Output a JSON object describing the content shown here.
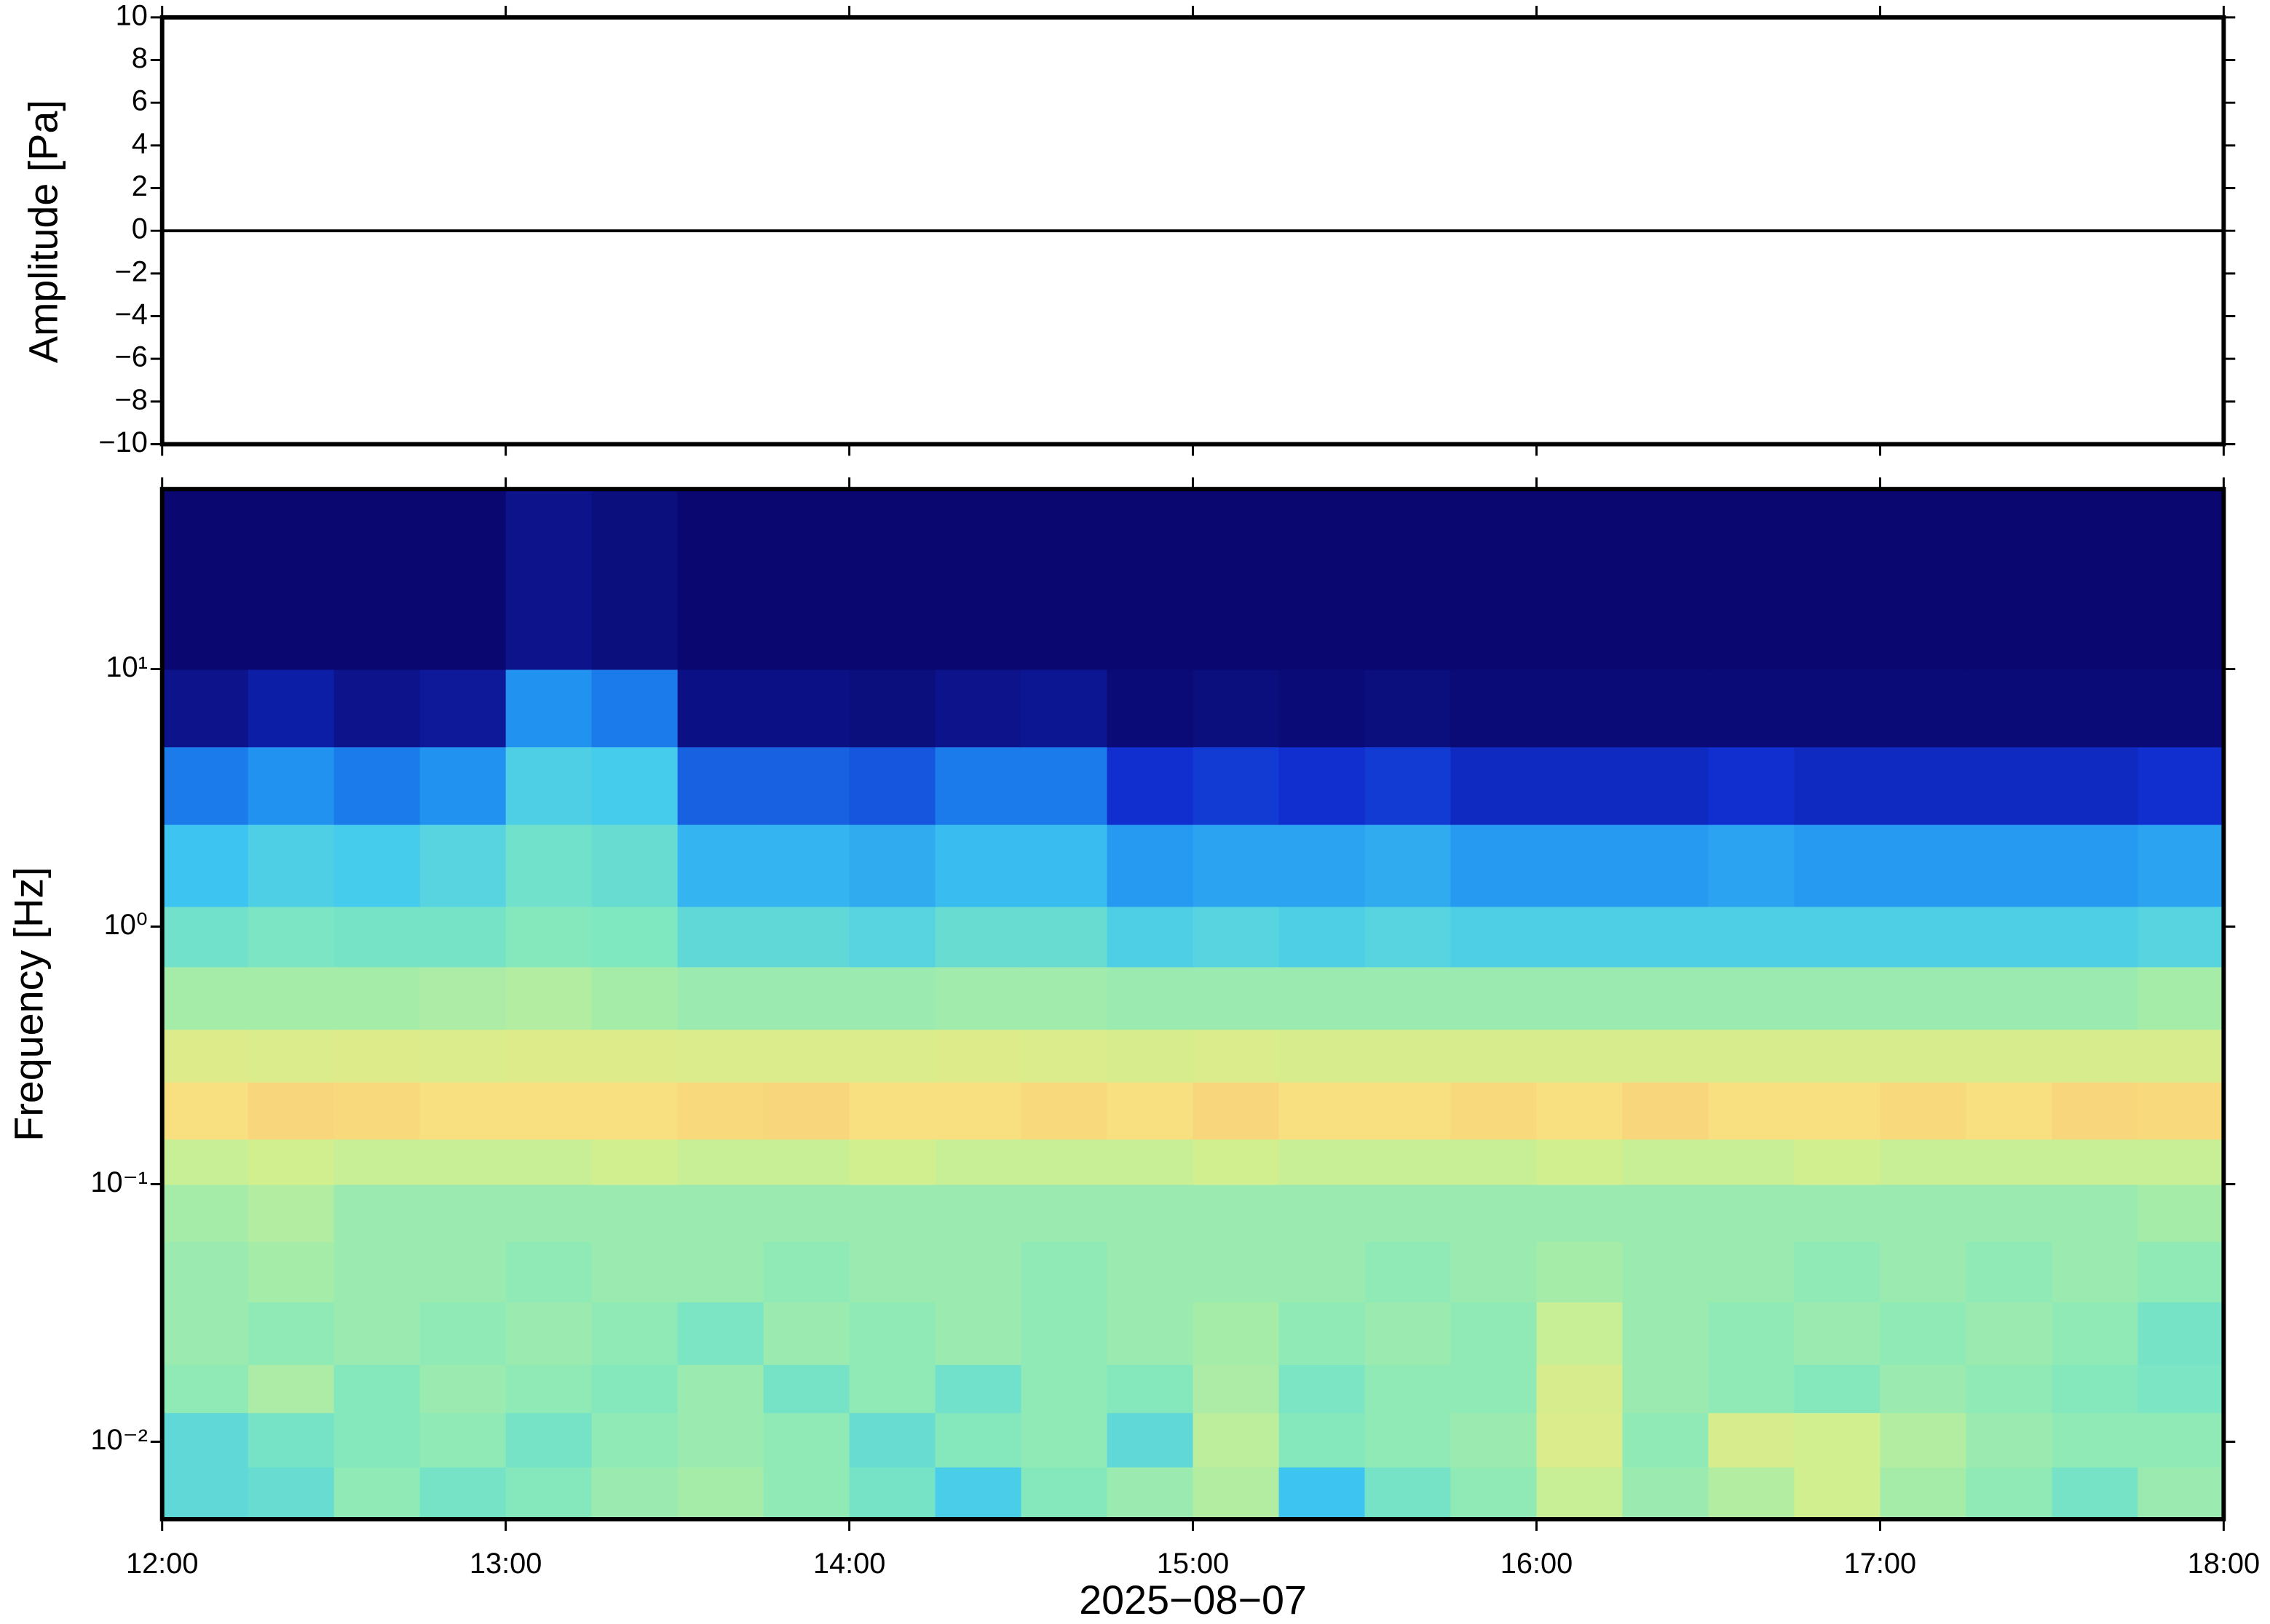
{
  "chart_data": [
    {
      "type": "line",
      "ylabel": "Amplitude [Pa]",
      "ylim": [
        -10,
        10
      ],
      "yticks": [
        {
          "value": -10,
          "label": "−10"
        },
        {
          "value": -8,
          "label": "−8"
        },
        {
          "value": -6,
          "label": "−6"
        },
        {
          "value": -4,
          "label": "−4"
        },
        {
          "value": -2,
          "label": "−2"
        },
        0,
        2,
        4,
        6,
        8,
        10
      ],
      "xlim": [
        12,
        18
      ],
      "x": [
        12,
        12.5,
        13,
        13.5,
        14,
        14.5,
        15,
        15.5,
        16,
        16.5,
        17,
        17.5,
        18
      ],
      "values": [
        0,
        0,
        0,
        0,
        0,
        0,
        0,
        0,
        0,
        0,
        0,
        0,
        0
      ],
      "color": "#000000"
    },
    {
      "type": "heatmap",
      "ylabel": "Frequency [Hz]",
      "xlabel": "2025−08−07",
      "ylog": true,
      "ylim": [
        0.005,
        50
      ],
      "yticks": [
        {
          "value": 0.01,
          "label": "10⁻²"
        },
        {
          "value": 0.1,
          "label": "10⁻¹"
        },
        {
          "value": 1,
          "label": "10⁰"
        },
        {
          "value": 10,
          "label": "10¹"
        }
      ],
      "xlim": [
        12,
        18
      ],
      "xticks": [
        {
          "value": 12,
          "label": "12:00"
        },
        {
          "value": 13,
          "label": "13:00"
        },
        {
          "value": 14,
          "label": "14:00"
        },
        {
          "value": 15,
          "label": "15:00"
        },
        {
          "value": 16,
          "label": "16:00"
        },
        {
          "value": 17,
          "label": "17:00"
        },
        {
          "value": 18,
          "label": "18:00"
        }
      ],
      "xbins": [
        12,
        12.25,
        12.5,
        12.75,
        13,
        13.25,
        13.5,
        13.75,
        14,
        14.25,
        14.5,
        14.75,
        15,
        15.25,
        15.5,
        15.75,
        16,
        16.25,
        16.5,
        16.75,
        17,
        17.25,
        17.5,
        17.75,
        18
      ],
      "ybins": [
        0.005,
        0.008,
        0.013,
        0.02,
        0.035,
        0.06,
        0.1,
        0.15,
        0.25,
        0.4,
        0.7,
        1.2,
        2.5,
        5,
        10,
        50
      ],
      "colormap": [
        "#0a0870",
        "#1030d0",
        "#1e8cf0",
        "#40c8f0",
        "#80e8c0",
        "#d0f090",
        "#f8e080",
        "#f8a060"
      ],
      "values": [
        [
          0.5,
          0.52,
          0.6,
          0.55,
          0.58,
          0.62,
          0.64,
          0.6,
          0.55,
          0.45,
          0.58,
          0.62,
          0.66,
          0.42,
          0.55,
          0.6,
          0.7,
          0.62,
          0.66,
          0.72,
          0.64,
          0.6,
          0.55,
          0.62
        ],
        [
          0.5,
          0.55,
          0.58,
          0.6,
          0.55,
          0.6,
          0.62,
          0.6,
          0.52,
          0.58,
          0.6,
          0.5,
          0.68,
          0.58,
          0.6,
          0.62,
          0.75,
          0.6,
          0.74,
          0.72,
          0.66,
          0.62,
          0.6,
          0.6
        ],
        [
          0.6,
          0.65,
          0.58,
          0.62,
          0.6,
          0.58,
          0.62,
          0.55,
          0.6,
          0.54,
          0.6,
          0.58,
          0.65,
          0.56,
          0.6,
          0.6,
          0.74,
          0.62,
          0.6,
          0.58,
          0.62,
          0.6,
          0.58,
          0.56
        ],
        [
          0.62,
          0.6,
          0.62,
          0.6,
          0.62,
          0.6,
          0.56,
          0.62,
          0.6,
          0.62,
          0.6,
          0.62,
          0.64,
          0.6,
          0.62,
          0.6,
          0.7,
          0.62,
          0.6,
          0.62,
          0.6,
          0.62,
          0.6,
          0.55
        ],
        [
          0.62,
          0.64,
          0.62,
          0.62,
          0.6,
          0.62,
          0.62,
          0.6,
          0.62,
          0.62,
          0.6,
          0.62,
          0.62,
          0.62,
          0.6,
          0.62,
          0.64,
          0.62,
          0.62,
          0.6,
          0.62,
          0.6,
          0.62,
          0.6
        ],
        [
          0.64,
          0.66,
          0.62,
          0.62,
          0.62,
          0.62,
          0.62,
          0.62,
          0.62,
          0.62,
          0.62,
          0.62,
          0.62,
          0.62,
          0.62,
          0.62,
          0.62,
          0.62,
          0.62,
          0.62,
          0.62,
          0.62,
          0.62,
          0.64
        ],
        [
          0.7,
          0.72,
          0.7,
          0.7,
          0.7,
          0.72,
          0.7,
          0.7,
          0.72,
          0.7,
          0.7,
          0.7,
          0.72,
          0.7,
          0.7,
          0.7,
          0.72,
          0.7,
          0.7,
          0.72,
          0.7,
          0.7,
          0.7,
          0.7
        ],
        [
          0.86,
          0.88,
          0.87,
          0.86,
          0.86,
          0.86,
          0.87,
          0.88,
          0.86,
          0.86,
          0.87,
          0.86,
          0.88,
          0.86,
          0.86,
          0.87,
          0.86,
          0.88,
          0.86,
          0.86,
          0.87,
          0.86,
          0.88,
          0.87
        ],
        [
          0.76,
          0.75,
          0.76,
          0.75,
          0.76,
          0.76,
          0.75,
          0.75,
          0.75,
          0.76,
          0.75,
          0.74,
          0.75,
          0.74,
          0.74,
          0.74,
          0.74,
          0.74,
          0.74,
          0.74,
          0.74,
          0.74,
          0.74,
          0.74
        ],
        [
          0.64,
          0.64,
          0.64,
          0.65,
          0.66,
          0.64,
          0.62,
          0.62,
          0.62,
          0.63,
          0.63,
          0.62,
          0.62,
          0.62,
          0.62,
          0.62,
          0.62,
          0.62,
          0.62,
          0.62,
          0.62,
          0.62,
          0.62,
          0.64
        ],
        [
          0.54,
          0.56,
          0.55,
          0.55,
          0.58,
          0.57,
          0.5,
          0.5,
          0.48,
          0.52,
          0.52,
          0.46,
          0.48,
          0.46,
          0.48,
          0.46,
          0.46,
          0.46,
          0.46,
          0.46,
          0.46,
          0.46,
          0.46,
          0.48
        ],
        [
          0.42,
          0.46,
          0.44,
          0.48,
          0.54,
          0.52,
          0.38,
          0.38,
          0.36,
          0.4,
          0.4,
          0.32,
          0.34,
          0.34,
          0.36,
          0.32,
          0.32,
          0.32,
          0.34,
          0.32,
          0.32,
          0.32,
          0.32,
          0.34
        ],
        [
          0.26,
          0.3,
          0.26,
          0.3,
          0.46,
          0.44,
          0.22,
          0.22,
          0.2,
          0.26,
          0.26,
          0.14,
          0.16,
          0.14,
          0.16,
          0.12,
          0.12,
          0.12,
          0.14,
          0.12,
          0.12,
          0.12,
          0.12,
          0.14
        ],
        [
          0.04,
          0.08,
          0.04,
          0.06,
          0.3,
          0.26,
          0.03,
          0.03,
          0.02,
          0.04,
          0.05,
          0.01,
          0.02,
          0.01,
          0.02,
          0.01,
          0.01,
          0.01,
          0.01,
          0.01,
          0.01,
          0.01,
          0.01,
          0.01
        ],
        [
          0,
          0,
          0,
          0,
          0.04,
          0.02,
          0,
          0,
          0,
          0,
          0,
          0,
          0,
          0,
          0,
          0,
          0,
          0,
          0,
          0,
          0,
          0,
          0,
          0
        ]
      ]
    }
  ]
}
